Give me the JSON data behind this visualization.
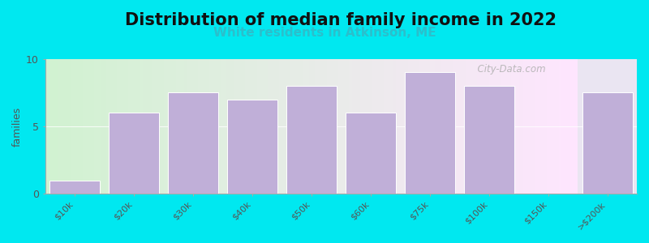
{
  "title": "Distribution of median family income in 2022",
  "subtitle": "White residents in Atkinson, ME",
  "ylabel": "families",
  "categories": [
    "$10k",
    "$20k",
    "$30k",
    "$40k",
    "$50k",
    "$60k",
    "$75k",
    "$100k",
    "$150k",
    ">$200k"
  ],
  "values": [
    1,
    6,
    7.5,
    7,
    8,
    6,
    9,
    8,
    0,
    7.5
  ],
  "bar_color": "#c0afd8",
  "background_outer": "#00e8f0",
  "ylim": [
    0,
    10
  ],
  "yticks": [
    0,
    5,
    10
  ],
  "title_fontsize": 15,
  "subtitle_fontsize": 11,
  "subtitle_color": "#2bbfcc",
  "watermark": "  City-Data.com",
  "figsize": [
    8.0,
    3.0
  ],
  "dpi": 100
}
